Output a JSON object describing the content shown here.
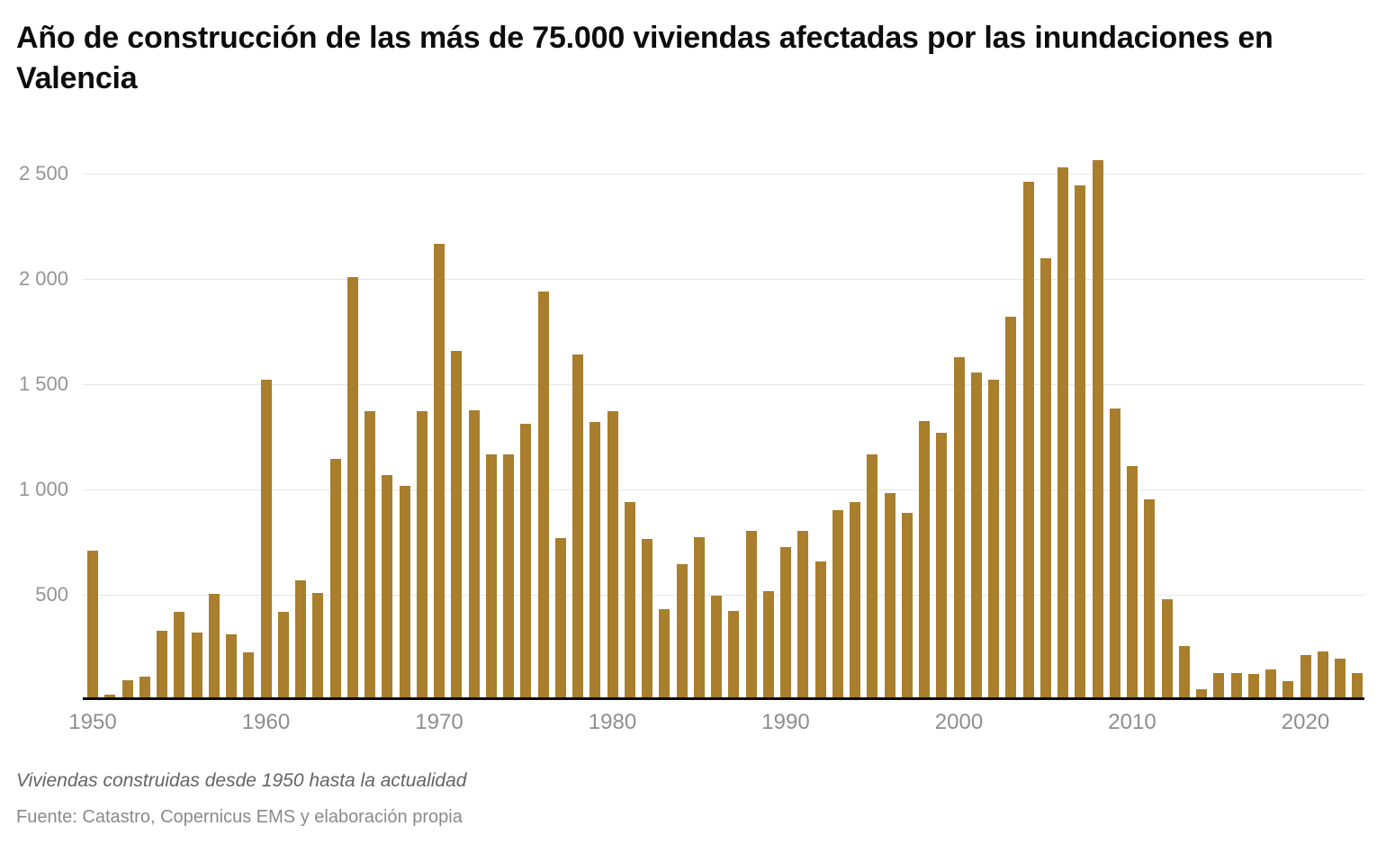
{
  "title": "Año de construcción de las más de 75.000 viviendas afectadas por las inundaciones en Valencia",
  "subtitle": "Viviendas construidas desde 1950 hasta la actualidad",
  "source": "Fuente: Catastro, Copernicus EMS y elaboración propia",
  "colors": {
    "bar": "#a97e2c",
    "gridline": "#e8e6e3",
    "axis_line": "#0b0b0b",
    "tick_label": "#8e8e8e",
    "title_text": "#0d0d0d"
  },
  "chart_data": {
    "type": "bar",
    "title": "Año de construcción de las más de 75.000 viviendas afectadas por las inundaciones en Valencia",
    "xlabel": "",
    "ylabel": "",
    "ylim": [
      0,
      2500
    ],
    "grid": "horizontal",
    "legend": "none",
    "y_ticks": [
      {
        "value": 2500,
        "label": "2 500"
      },
      {
        "value": 2000,
        "label": "2 000"
      },
      {
        "value": 1500,
        "label": "1 500"
      },
      {
        "value": 1000,
        "label": "1 000"
      },
      {
        "value": 500,
        "label": "500"
      }
    ],
    "x_ticks": [
      1950,
      1960,
      1970,
      1980,
      1990,
      2000,
      2010,
      2020
    ],
    "categories": [
      1950,
      1951,
      1952,
      1953,
      1954,
      1955,
      1956,
      1957,
      1958,
      1959,
      1960,
      1961,
      1962,
      1963,
      1964,
      1965,
      1966,
      1967,
      1968,
      1969,
      1970,
      1971,
      1972,
      1973,
      1974,
      1975,
      1976,
      1977,
      1978,
      1979,
      1980,
      1981,
      1982,
      1983,
      1984,
      1985,
      1986,
      1987,
      1988,
      1989,
      1990,
      1991,
      1992,
      1993,
      1994,
      1995,
      1996,
      1997,
      1998,
      1999,
      2000,
      2001,
      2002,
      2003,
      2004,
      2005,
      2006,
      2007,
      2008,
      2009,
      2010,
      2011,
      2012,
      2013,
      2014,
      2015,
      2016,
      2017,
      2018,
      2019,
      2020,
      2021,
      2022,
      2023
    ],
    "values": [
      710,
      25,
      95,
      110,
      330,
      420,
      320,
      505,
      310,
      225,
      1520,
      420,
      570,
      510,
      1145,
      2010,
      1370,
      1070,
      1015,
      1370,
      2165,
      1660,
      1375,
      1165,
      1165,
      1310,
      1940,
      770,
      1640,
      1320,
      1370,
      940,
      765,
      430,
      645,
      775,
      495,
      425,
      805,
      515,
      725,
      805,
      660,
      900,
      940,
      1165,
      985,
      890,
      1325,
      1270,
      1630,
      1555,
      1520,
      1820,
      2460,
      2100,
      2530,
      2445,
      2565,
      1385,
      1110,
      955,
      480,
      255,
      50,
      130,
      130,
      125,
      145,
      90,
      215,
      230,
      195,
      130
    ]
  }
}
